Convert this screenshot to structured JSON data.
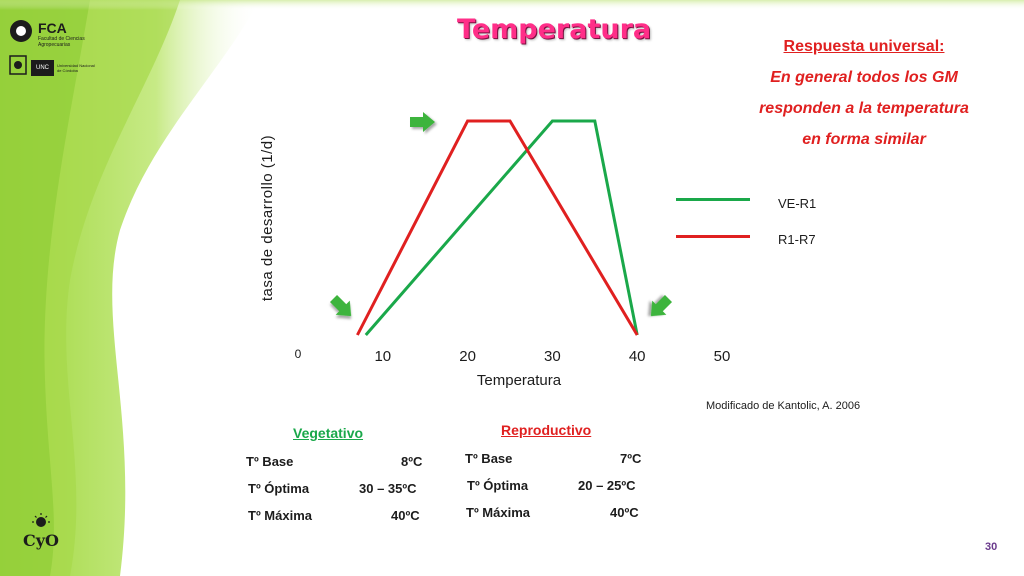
{
  "header": {
    "title": "Temperatura",
    "logo_fca": "FCA",
    "logo_fca_sub": "Facultad de Ciencias Agropecuarias",
    "logo_unc": "UNC",
    "logo_unc_sub": "Universidad Nacional de Córdoba"
  },
  "note": {
    "heading": "Respuesta universal:",
    "lines": [
      "En general todos los GM",
      "responden a la temperatura",
      "en forma similar"
    ]
  },
  "legend": [
    {
      "label": "VE-R1",
      "color": "#1aa84a"
    },
    {
      "label": "R1-R7",
      "color": "#e02020"
    }
  ],
  "chart_data": {
    "type": "line",
    "xlabel": "Temperatura",
    "ylabel": "tasa de desarrollo (1/d)",
    "xlim": [
      0,
      50
    ],
    "x_ticks": [
      "0",
      "10",
      "20",
      "30",
      "40",
      "50"
    ],
    "x_tick_values": [
      0,
      10,
      20,
      30,
      40,
      50
    ],
    "series": [
      {
        "name": "VE-R1",
        "color": "#1aa84a",
        "x": [
          8,
          30,
          35,
          40
        ],
        "y": [
          0,
          1,
          1,
          0
        ]
      },
      {
        "name": "R1-R7",
        "color": "#e02020",
        "x": [
          7,
          20,
          25,
          40
        ],
        "y": [
          0,
          1,
          1,
          0
        ]
      }
    ]
  },
  "source": "Modificado de Kantolic, A. 2006",
  "tables": {
    "vegetativo": {
      "title": "Vegetativo",
      "color": "#1aa84a",
      "rows": [
        {
          "label": "Tº Base",
          "value": "8ºC"
        },
        {
          "label": "Tº Óptima",
          "value": "30 – 35ºC"
        },
        {
          "label": "Tº Máxima",
          "value": "40ºC"
        }
      ]
    },
    "reproductivo": {
      "title": "Reproductivo",
      "color": "#e02020",
      "rows": [
        {
          "label": "Tº Base",
          "value": "7ºC"
        },
        {
          "label": "Tº Óptima",
          "value": "20 – 25ºC"
        },
        {
          "label": "Tº Máxima",
          "value": "40ºC"
        }
      ]
    }
  },
  "footer": {
    "page_number": "30",
    "cyo_logo": "CyO"
  }
}
